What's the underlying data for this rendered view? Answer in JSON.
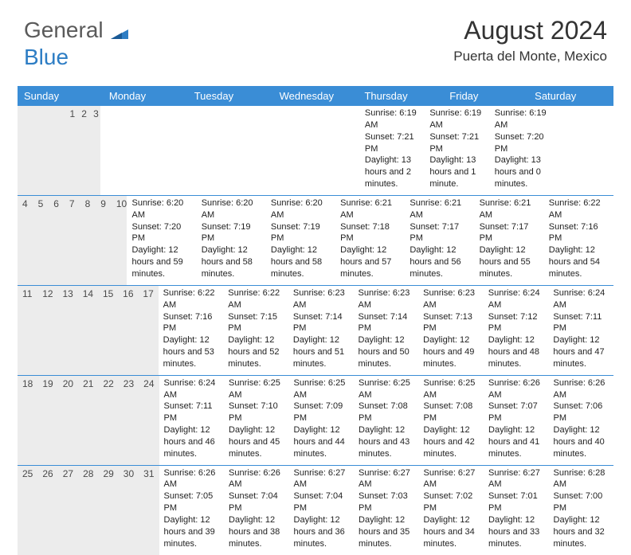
{
  "brand": {
    "part1": "General",
    "part2": "Blue"
  },
  "title": "August 2024",
  "location": "Puerta del Monte, Mexico",
  "colors": {
    "header_bg": "#3a8dd6",
    "header_text": "#ffffff",
    "daynum_bg": "#ececec",
    "border": "#3a8dd6",
    "logo_gray": "#5a5a5a",
    "logo_blue": "#2d7dc4"
  },
  "dayNames": [
    "Sunday",
    "Monday",
    "Tuesday",
    "Wednesday",
    "Thursday",
    "Friday",
    "Saturday"
  ],
  "weeks": [
    [
      {
        "day": "",
        "sunrise": "",
        "sunset": "",
        "daylight": ""
      },
      {
        "day": "",
        "sunrise": "",
        "sunset": "",
        "daylight": ""
      },
      {
        "day": "",
        "sunrise": "",
        "sunset": "",
        "daylight": ""
      },
      {
        "day": "",
        "sunrise": "",
        "sunset": "",
        "daylight": ""
      },
      {
        "day": "1",
        "sunrise": "Sunrise: 6:19 AM",
        "sunset": "Sunset: 7:21 PM",
        "daylight": "Daylight: 13 hours and 2 minutes."
      },
      {
        "day": "2",
        "sunrise": "Sunrise: 6:19 AM",
        "sunset": "Sunset: 7:21 PM",
        "daylight": "Daylight: 13 hours and 1 minute."
      },
      {
        "day": "3",
        "sunrise": "Sunrise: 6:19 AM",
        "sunset": "Sunset: 7:20 PM",
        "daylight": "Daylight: 13 hours and 0 minutes."
      }
    ],
    [
      {
        "day": "4",
        "sunrise": "Sunrise: 6:20 AM",
        "sunset": "Sunset: 7:20 PM",
        "daylight": "Daylight: 12 hours and 59 minutes."
      },
      {
        "day": "5",
        "sunrise": "Sunrise: 6:20 AM",
        "sunset": "Sunset: 7:19 PM",
        "daylight": "Daylight: 12 hours and 58 minutes."
      },
      {
        "day": "6",
        "sunrise": "Sunrise: 6:20 AM",
        "sunset": "Sunset: 7:19 PM",
        "daylight": "Daylight: 12 hours and 58 minutes."
      },
      {
        "day": "7",
        "sunrise": "Sunrise: 6:21 AM",
        "sunset": "Sunset: 7:18 PM",
        "daylight": "Daylight: 12 hours and 57 minutes."
      },
      {
        "day": "8",
        "sunrise": "Sunrise: 6:21 AM",
        "sunset": "Sunset: 7:17 PM",
        "daylight": "Daylight: 12 hours and 56 minutes."
      },
      {
        "day": "9",
        "sunrise": "Sunrise: 6:21 AM",
        "sunset": "Sunset: 7:17 PM",
        "daylight": "Daylight: 12 hours and 55 minutes."
      },
      {
        "day": "10",
        "sunrise": "Sunrise: 6:22 AM",
        "sunset": "Sunset: 7:16 PM",
        "daylight": "Daylight: 12 hours and 54 minutes."
      }
    ],
    [
      {
        "day": "11",
        "sunrise": "Sunrise: 6:22 AM",
        "sunset": "Sunset: 7:16 PM",
        "daylight": "Daylight: 12 hours and 53 minutes."
      },
      {
        "day": "12",
        "sunrise": "Sunrise: 6:22 AM",
        "sunset": "Sunset: 7:15 PM",
        "daylight": "Daylight: 12 hours and 52 minutes."
      },
      {
        "day": "13",
        "sunrise": "Sunrise: 6:23 AM",
        "sunset": "Sunset: 7:14 PM",
        "daylight": "Daylight: 12 hours and 51 minutes."
      },
      {
        "day": "14",
        "sunrise": "Sunrise: 6:23 AM",
        "sunset": "Sunset: 7:14 PM",
        "daylight": "Daylight: 12 hours and 50 minutes."
      },
      {
        "day": "15",
        "sunrise": "Sunrise: 6:23 AM",
        "sunset": "Sunset: 7:13 PM",
        "daylight": "Daylight: 12 hours and 49 minutes."
      },
      {
        "day": "16",
        "sunrise": "Sunrise: 6:24 AM",
        "sunset": "Sunset: 7:12 PM",
        "daylight": "Daylight: 12 hours and 48 minutes."
      },
      {
        "day": "17",
        "sunrise": "Sunrise: 6:24 AM",
        "sunset": "Sunset: 7:11 PM",
        "daylight": "Daylight: 12 hours and 47 minutes."
      }
    ],
    [
      {
        "day": "18",
        "sunrise": "Sunrise: 6:24 AM",
        "sunset": "Sunset: 7:11 PM",
        "daylight": "Daylight: 12 hours and 46 minutes."
      },
      {
        "day": "19",
        "sunrise": "Sunrise: 6:25 AM",
        "sunset": "Sunset: 7:10 PM",
        "daylight": "Daylight: 12 hours and 45 minutes."
      },
      {
        "day": "20",
        "sunrise": "Sunrise: 6:25 AM",
        "sunset": "Sunset: 7:09 PM",
        "daylight": "Daylight: 12 hours and 44 minutes."
      },
      {
        "day": "21",
        "sunrise": "Sunrise: 6:25 AM",
        "sunset": "Sunset: 7:08 PM",
        "daylight": "Daylight: 12 hours and 43 minutes."
      },
      {
        "day": "22",
        "sunrise": "Sunrise: 6:25 AM",
        "sunset": "Sunset: 7:08 PM",
        "daylight": "Daylight: 12 hours and 42 minutes."
      },
      {
        "day": "23",
        "sunrise": "Sunrise: 6:26 AM",
        "sunset": "Sunset: 7:07 PM",
        "daylight": "Daylight: 12 hours and 41 minutes."
      },
      {
        "day": "24",
        "sunrise": "Sunrise: 6:26 AM",
        "sunset": "Sunset: 7:06 PM",
        "daylight": "Daylight: 12 hours and 40 minutes."
      }
    ],
    [
      {
        "day": "25",
        "sunrise": "Sunrise: 6:26 AM",
        "sunset": "Sunset: 7:05 PM",
        "daylight": "Daylight: 12 hours and 39 minutes."
      },
      {
        "day": "26",
        "sunrise": "Sunrise: 6:26 AM",
        "sunset": "Sunset: 7:04 PM",
        "daylight": "Daylight: 12 hours and 38 minutes."
      },
      {
        "day": "27",
        "sunrise": "Sunrise: 6:27 AM",
        "sunset": "Sunset: 7:04 PM",
        "daylight": "Daylight: 12 hours and 36 minutes."
      },
      {
        "day": "28",
        "sunrise": "Sunrise: 6:27 AM",
        "sunset": "Sunset: 7:03 PM",
        "daylight": "Daylight: 12 hours and 35 minutes."
      },
      {
        "day": "29",
        "sunrise": "Sunrise: 6:27 AM",
        "sunset": "Sunset: 7:02 PM",
        "daylight": "Daylight: 12 hours and 34 minutes."
      },
      {
        "day": "30",
        "sunrise": "Sunrise: 6:27 AM",
        "sunset": "Sunset: 7:01 PM",
        "daylight": "Daylight: 12 hours and 33 minutes."
      },
      {
        "day": "31",
        "sunrise": "Sunrise: 6:28 AM",
        "sunset": "Sunset: 7:00 PM",
        "daylight": "Daylight: 12 hours and 32 minutes."
      }
    ]
  ]
}
